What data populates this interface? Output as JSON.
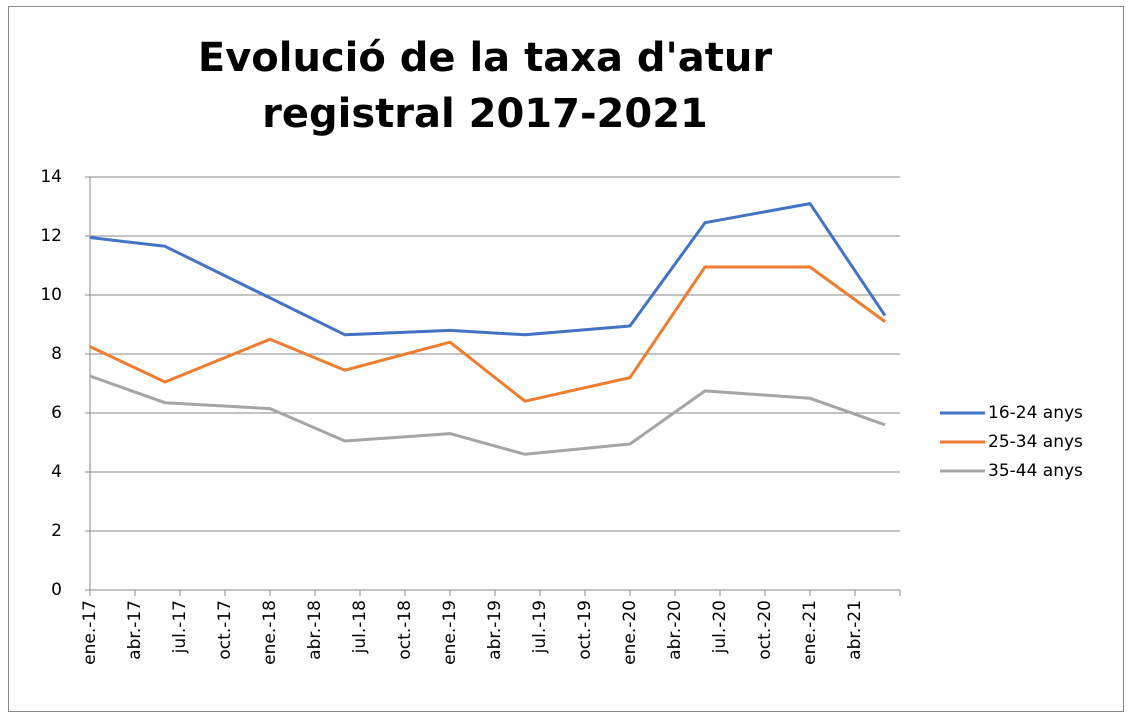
{
  "chart_data": {
    "type": "line",
    "title": "Evolució de la taxa d'atur registral 2017-2021",
    "x": [
      "2017-01",
      "2017-06",
      "2018-01",
      "2018-06",
      "2019-01",
      "2019-06",
      "2020-01",
      "2020-06",
      "2021-01",
      "2021-06"
    ],
    "series": [
      {
        "name": "16-24 anys",
        "color": "#4472c4",
        "values": [
          11.95,
          11.65,
          9.9,
          8.65,
          8.8,
          8.65,
          8.95,
          12.45,
          13.1,
          9.3
        ]
      },
      {
        "name": "25-34 anys",
        "color": "#ed7d31",
        "values": [
          8.25,
          7.05,
          8.5,
          7.45,
          8.4,
          6.4,
          7.2,
          10.95,
          10.95,
          9.1
        ]
      },
      {
        "name": "35-44 anys",
        "color": "#a5a5a5",
        "values": [
          7.25,
          6.35,
          6.15,
          5.05,
          5.3,
          4.6,
          4.95,
          6.75,
          6.5,
          5.6
        ]
      }
    ],
    "xlim": [
      "2017-01",
      "2021-07"
    ],
    "xticks": [
      {
        "value": "2017-01",
        "label": "ene.-17"
      },
      {
        "value": "2017-04",
        "label": "abr.-17"
      },
      {
        "value": "2017-07",
        "label": "jul.-17"
      },
      {
        "value": "2017-10",
        "label": "oct.-17"
      },
      {
        "value": "2018-01",
        "label": "ene.-18"
      },
      {
        "value": "2018-04",
        "label": "abr.-18"
      },
      {
        "value": "2018-07",
        "label": "jul.-18"
      },
      {
        "value": "2018-10",
        "label": "oct.-18"
      },
      {
        "value": "2019-01",
        "label": "ene.-19"
      },
      {
        "value": "2019-04",
        "label": "abr.-19"
      },
      {
        "value": "2019-07",
        "label": "jul.-19"
      },
      {
        "value": "2019-10",
        "label": "oct.-19"
      },
      {
        "value": "2020-01",
        "label": "ene.-20"
      },
      {
        "value": "2020-04",
        "label": "abr.-20"
      },
      {
        "value": "2020-07",
        "label": "jul.-20"
      },
      {
        "value": "2020-10",
        "label": "oct.-20"
      },
      {
        "value": "2021-01",
        "label": "ene.-21"
      },
      {
        "value": "2021-04",
        "label": "abr.-21"
      }
    ],
    "ylim": [
      0,
      14
    ],
    "yticks": [
      0,
      2,
      4,
      6,
      8,
      10,
      12,
      14
    ],
    "grid": true,
    "legend": "right"
  }
}
